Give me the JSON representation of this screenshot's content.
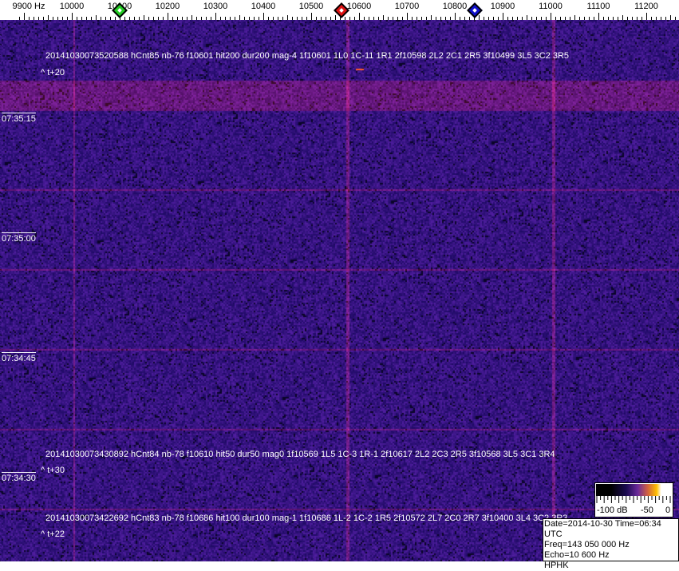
{
  "chart_data": {
    "type": "heatmap",
    "xlabel_unit": "Hz",
    "x_ticks": [
      "9900 Hz",
      "10000",
      "10100",
      "10200",
      "10300",
      "10400",
      "10500",
      "10600",
      "10700",
      "10800",
      "10900",
      "11000",
      "11100",
      "11200"
    ],
    "x_tick_values": [
      9900,
      10000,
      10100,
      10200,
      10300,
      10400,
      10500,
      10600,
      10700,
      10800,
      10900,
      11000,
      11100,
      11200
    ],
    "xlim": [
      9885,
      11300
    ],
    "markers": [
      {
        "freq": 10100,
        "color": "#22cc22"
      },
      {
        "freq": 10563,
        "color": "#dd1111"
      },
      {
        "freq": 10841,
        "color": "#1111cc"
      }
    ],
    "time_labels": [
      "07:35:15",
      "07:35:00",
      "07:34:45",
      "07:34:30"
    ],
    "colormap": {
      "min_db": -100,
      "max_db": 0,
      "labels": [
        "-100 dB",
        "-50",
        "0"
      ]
    },
    "annotations": [
      {
        "text": "20141030073520588 hCnt85 nb-76 f10601 hit200 dur200 mag-4 1f10601 1L0 1C-11 1R1 2f10598 2L2 2C1 2R5 3f10499 3L5 3C2 3R5",
        "offset": "^ t+20"
      },
      {
        "text": "20141030073430892 hCnt84 nb-78 f10610 hit50 dur50 mag0 1f10569 1L5 1C-3 1R-1 2f10617 2L2 2C3 2R5 3f10568 3L5 3C1 3R4",
        "offset": "^ t+30"
      },
      {
        "text": "20141030073422692 hCnt83 nb-78 f10686 hit100 dur100 mag-1 1f10686 1L-2 1C-2 1R5 2f10572 2L7 2C0 2R7 3f10400 3L4 3C2 3R3",
        "offset": "^ t+22"
      }
    ],
    "info": [
      "Date=2014-10-30 Time=06:34 UTC",
      "Freq=143 050 000 Hz",
      "Echo=10 600 Hz",
      "HPHK"
    ]
  }
}
